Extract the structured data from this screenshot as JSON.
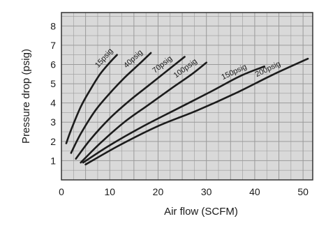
{
  "chart_data": {
    "type": "line",
    "title": "",
    "xlabel": "Air flow (SCFM)",
    "ylabel": "Pressure drop (psig)",
    "xlim": [
      0,
      52
    ],
    "ylim": [
      0,
      8.7
    ],
    "xticks": [
      0,
      10,
      20,
      30,
      40,
      50
    ],
    "yticks": [
      1,
      2,
      3,
      4,
      5,
      6,
      7,
      8
    ],
    "grid": true,
    "legend": "none (series labeled along curves)",
    "colors": {
      "line": "#1c1c1c",
      "grid": "#9a9a9a",
      "plot_bg": "#d9d9d9"
    },
    "series": [
      {
        "name": "15psig",
        "x": [
          1,
          2,
          4,
          6,
          8,
          10,
          11.5
        ],
        "y": [
          1.9,
          2.6,
          3.8,
          4.7,
          5.5,
          6.1,
          6.5
        ]
      },
      {
        "name": "40psig",
        "x": [
          2,
          4,
          7,
          10,
          13,
          16,
          18.5
        ],
        "y": [
          1.4,
          2.4,
          3.6,
          4.5,
          5.3,
          6.0,
          6.6
        ]
      },
      {
        "name": "70psig",
        "x": [
          3,
          6,
          10,
          14,
          18,
          22,
          25.5
        ],
        "y": [
          1.1,
          2.1,
          3.2,
          4.1,
          4.9,
          5.7,
          6.4
        ]
      },
      {
        "name": "100psig",
        "x": [
          4,
          8,
          13,
          18,
          23,
          27,
          30
        ],
        "y": [
          0.9,
          1.9,
          3.0,
          3.9,
          4.8,
          5.5,
          6.1
        ]
      },
      {
        "name": "150psig",
        "x": [
          4.5,
          10,
          17,
          24,
          31,
          37,
          42
        ],
        "y": [
          0.9,
          1.8,
          2.8,
          3.7,
          4.6,
          5.4,
          5.9
        ]
      },
      {
        "name": "200psig",
        "x": [
          5,
          12,
          20,
          28,
          36,
          44,
          51
        ],
        "y": [
          0.8,
          1.8,
          2.8,
          3.6,
          4.5,
          5.5,
          6.3
        ]
      }
    ]
  }
}
